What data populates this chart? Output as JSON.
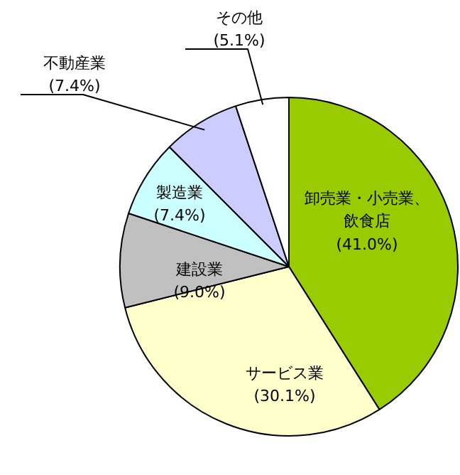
{
  "chart_data": {
    "type": "pie",
    "categories": [
      "卸売業・小売業、飲食店",
      "サービス業",
      "建設業",
      "製造業",
      "不動産業",
      "その他"
    ],
    "values": [
      41.0,
      30.1,
      9.0,
      7.4,
      7.4,
      5.1
    ],
    "value_labels": [
      "(41.0%)",
      "(30.1%)",
      "(9.0%)",
      "(7.4%)",
      "(7.4%)",
      "(5.1%)"
    ],
    "colors": [
      "#99cc00",
      "#ffffcc",
      "#c0c0c0",
      "#ccffff",
      "#ccccff",
      "#ffffff"
    ]
  }
}
